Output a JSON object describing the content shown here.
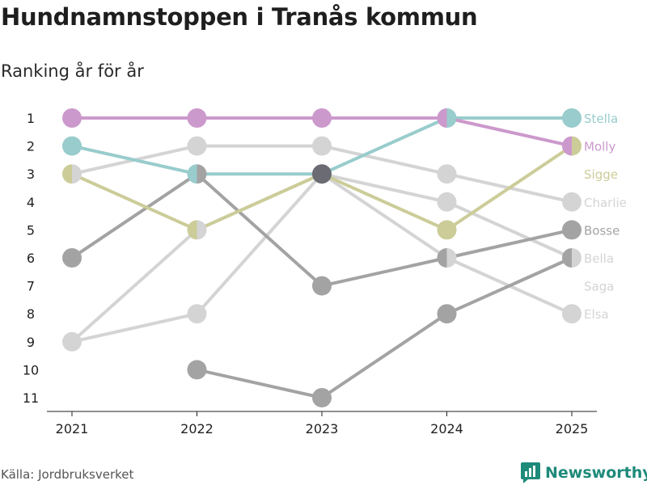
{
  "title": "Hundnamnstoppen i Tranås kommun",
  "subtitle": "Ranking år för år",
  "source": "Källa: Jordbruksverket",
  "brand": {
    "name": "Newsworthy",
    "icon": "chart-logo-icon",
    "color": "#1e8a7a"
  },
  "chart_data": {
    "type": "line",
    "title": "Hundnamnstoppen i Tranås kommun",
    "subtitle": "Ranking år för år",
    "xlabel": "",
    "ylabel": "",
    "x": [
      2021,
      2022,
      2023,
      2024,
      2025
    ],
    "y_ticks": [
      "1",
      "2",
      "3",
      "4",
      "5",
      "6",
      "7",
      "8",
      "9",
      "10",
      "11"
    ],
    "ylim": [
      1,
      11
    ],
    "y_inverted": true,
    "grid": false,
    "series": [
      {
        "name": "Elsa",
        "color": "#d4d4d4",
        "values": [
          9,
          5,
          3,
          6,
          8
        ]
      },
      {
        "name": "Charlie",
        "color": "#d4d4d4",
        "values": [
          3,
          2,
          2,
          3,
          4
        ]
      },
      {
        "name": "Bella",
        "color": "#d4d4d4",
        "values": [
          9,
          8,
          3,
          4,
          6
        ]
      },
      {
        "name": "Saga",
        "color": "#d4d4d4",
        "values": [
          null,
          null,
          null,
          null,
          null
        ]
      },
      {
        "name": "Bosse",
        "color": "#a3a3a3",
        "values": [
          6,
          3,
          7,
          6,
          5
        ]
      },
      {
        "name": "Sigge",
        "color": "#cccc99",
        "values": [
          3,
          5,
          3,
          5,
          2
        ]
      },
      {
        "name": "Stella",
        "color": "#99cccc",
        "values": [
          2,
          3,
          3,
          1,
          1
        ]
      },
      {
        "name": "Molly",
        "color": "#cc99cc",
        "values": [
          1,
          1,
          1,
          1,
          2
        ]
      },
      {
        "name": "",
        "color": "#a3a3a3",
        "values": [
          null,
          10,
          11,
          8,
          6
        ]
      }
    ],
    "dark_marker": {
      "x": 2023,
      "y": 3,
      "color": "#6b6b73"
    },
    "legend": [
      {
        "name": "Stella",
        "color": "#99cccc",
        "rank": 1
      },
      {
        "name": "Molly",
        "color": "#cc99cc",
        "rank": 2
      },
      {
        "name": "Sigge",
        "color": "#cccc99",
        "rank": 3
      },
      {
        "name": "Charlie",
        "color": "#d4d4d4",
        "rank": 4
      },
      {
        "name": "Bosse",
        "color": "#a3a3a3",
        "rank": 5
      },
      {
        "name": "Bella",
        "color": "#d4d4d4",
        "rank": 6
      },
      {
        "name": "Saga",
        "color": "#d4d4d4",
        "rank": 7
      },
      {
        "name": "Elsa",
        "color": "#d4d4d4",
        "rank": 8
      }
    ]
  }
}
